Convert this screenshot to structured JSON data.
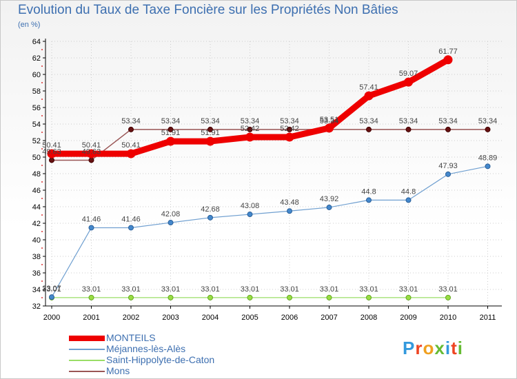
{
  "header": {
    "title": "Evolution du Taux de Taxe Foncière sur les Propriétés Non Bâties",
    "unit": "(en %)"
  },
  "logo": {
    "text": "Proxiti"
  },
  "chart_data": {
    "type": "line",
    "title": "Evolution du Taux de Taxe Foncière sur les Propriétés Non Bâties",
    "ylabel": "(en %)",
    "xlabel": "",
    "ylim": [
      32,
      64
    ],
    "yticks": [
      32,
      34,
      36,
      38,
      40,
      42,
      44,
      46,
      48,
      50,
      52,
      54,
      56,
      58,
      60,
      62,
      64
    ],
    "categories": [
      "2000",
      "2001",
      "2002",
      "2003",
      "2004",
      "2005",
      "2006",
      "2007",
      "2008",
      "2009",
      "2010",
      "2011"
    ],
    "legend_position": "bottom-left",
    "series": [
      {
        "name": "MONTEILS",
        "color": "#ee0000",
        "values": [
          50.41,
          50.41,
          50.41,
          51.91,
          51.91,
          52.42,
          52.42,
          53.51,
          57.41,
          59.07,
          61.77,
          null
        ],
        "labels": [
          "50.41",
          "50.41",
          "50.41",
          "51.91",
          "51.91",
          "52.42",
          "52.42",
          "53.51",
          "57.41",
          "59.07",
          "61.77",
          ""
        ]
      },
      {
        "name": "Méjannes-lès-Alès",
        "color": "#6f9fd0",
        "values": [
          33.07,
          41.46,
          41.46,
          42.08,
          42.68,
          43.08,
          43.48,
          43.92,
          44.8,
          44.8,
          47.93,
          48.89
        ],
        "labels": [
          "33.07",
          "41.46",
          "41.46",
          "42.08",
          "42.68",
          "43.08",
          "43.48",
          "43.92",
          "44.8",
          "44.8",
          "47.93",
          "48.89"
        ]
      },
      {
        "name": "Saint-Hippolyte-de-Caton",
        "color": "#99dd66",
        "values": [
          33.01,
          33.01,
          33.01,
          33.01,
          33.01,
          33.01,
          33.01,
          33.01,
          33.01,
          33.01,
          33.01,
          null
        ],
        "labels": [
          "33.01",
          "33.01",
          "33.01",
          "33.01",
          "33.01",
          "33.01",
          "33.01",
          "33.01",
          "33.01",
          "33.01",
          "33.01",
          ""
        ]
      },
      {
        "name": "Mons",
        "color": "#995555",
        "values": [
          49.63,
          49.63,
          53.34,
          53.34,
          53.34,
          53.34,
          53.34,
          53.34,
          53.34,
          53.34,
          53.34,
          53.34
        ],
        "labels": [
          "49.63",
          "49.63",
          "53.34",
          "53.34",
          "53.34",
          "53.34",
          "53.34",
          "53.34",
          "53.34",
          "53.34",
          "53.34",
          "53.34"
        ]
      }
    ]
  }
}
